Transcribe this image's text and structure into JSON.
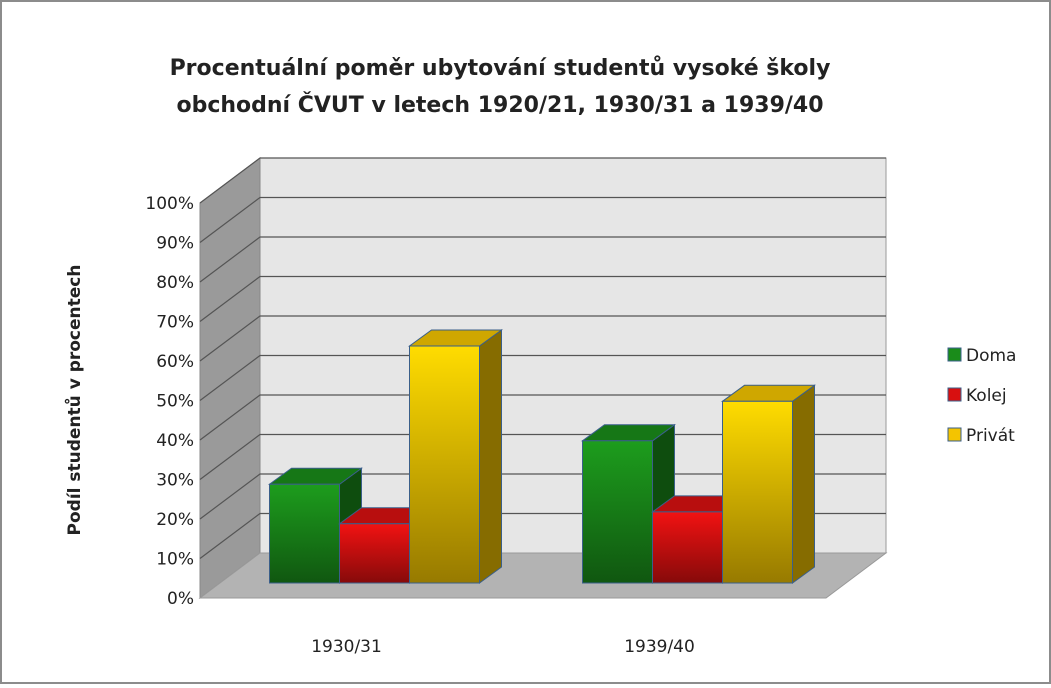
{
  "chart_data": {
    "type": "bar3d",
    "title": [
      "Procentuální poměr ubytování studentů vysoké školy",
      "obchodní ČVUT v letech 1920/21, 1930/31 a 1939/40"
    ],
    "y_label": "Podíl studentů v procentech",
    "categories": [
      "1930/31",
      "1939/40"
    ],
    "series": [
      {
        "name": "Doma",
        "color": "#1a8c1a",
        "values": [
          25,
          36
        ]
      },
      {
        "name": "Kolej",
        "color": "#d81010",
        "values": [
          15,
          18
        ]
      },
      {
        "name": "Privát",
        "color": "#f4c400",
        "values": [
          60,
          46
        ]
      }
    ],
    "ylim": [
      0,
      100
    ],
    "yticks": [
      {
        "value": 0,
        "label": "0%"
      },
      {
        "value": 10,
        "label": "10%"
      },
      {
        "value": 20,
        "label": "20%"
      },
      {
        "value": 30,
        "label": "30%"
      },
      {
        "value": 40,
        "label": "40%"
      },
      {
        "value": 50,
        "label": "50%"
      },
      {
        "value": 60,
        "label": "60%"
      },
      {
        "value": 70,
        "label": "70%"
      },
      {
        "value": 80,
        "label": "80%"
      },
      {
        "value": 90,
        "label": "90%"
      },
      {
        "value": 100,
        "label": "100%"
      }
    ],
    "grid": true,
    "legend": "right"
  }
}
